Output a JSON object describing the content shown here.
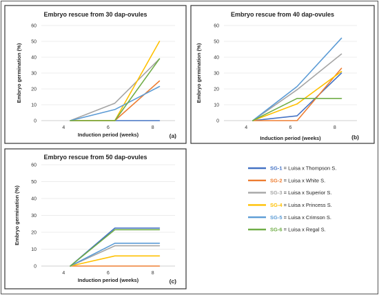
{
  "colors": {
    "SG-1": "#4472c4",
    "SG-2": "#ed7d31",
    "SG-3": "#a5a5a5",
    "SG-4": "#ffc000",
    "SG-5": "#5b9bd5",
    "SG-6": "#70ad47"
  },
  "legend": [
    {
      "key": "SG-1",
      "code": "SG-1",
      "text": " = Luisa x Thompson S."
    },
    {
      "key": "SG-2",
      "code": "SG-2",
      "text": " = Luisa x White S."
    },
    {
      "key": "SG-3",
      "code": "SG-3",
      "text": " = Luisa x Superior S."
    },
    {
      "key": "SG-4",
      "code": "SG-4",
      "text": " = Luisa x Princess S."
    },
    {
      "key": "SG-5",
      "code": "SG-5",
      "text": " = Luisa x Crimson S."
    },
    {
      "key": "SG-6",
      "code": "SG-6",
      "text": " = Luisa x Regal S."
    }
  ],
  "chart_data": [
    {
      "type": "line",
      "panel": "(a)",
      "title": "Embryo rescue from 30 dap-ovules",
      "xlabel": "Induction period (weeks)",
      "ylabel": "Embryo germination (%)",
      "x": [
        4,
        6,
        8
      ],
      "xlim": [
        3,
        9
      ],
      "ylim": [
        0,
        60
      ],
      "yticks": [
        0,
        10,
        20,
        30,
        40,
        50,
        60
      ],
      "grid": true,
      "series": [
        {
          "key": "SG-1",
          "points": [
            [
              4.3,
              0
            ],
            [
              6.3,
              0
            ],
            [
              8.3,
              0
            ]
          ]
        },
        {
          "key": "SG-2",
          "points": [
            [
              4.3,
              0
            ],
            [
              6.3,
              0
            ],
            [
              8.3,
              25
            ]
          ]
        },
        {
          "key": "SG-3",
          "points": [
            [
              4.3,
              0
            ],
            [
              6.3,
              11
            ],
            [
              8.3,
              39
            ]
          ]
        },
        {
          "key": "SG-4",
          "points": [
            [
              4.3,
              0
            ],
            [
              6.3,
              0
            ],
            [
              8.3,
              50
            ]
          ]
        },
        {
          "key": "SG-5",
          "points": [
            [
              4.3,
              0
            ],
            [
              6.3,
              7
            ],
            [
              8.3,
              21.5
            ]
          ]
        },
        {
          "key": "SG-6",
          "points": [
            [
              4.3,
              0
            ],
            [
              6.3,
              0
            ],
            [
              8.3,
              39
            ]
          ]
        }
      ]
    },
    {
      "type": "line",
      "panel": "(b)",
      "title": "Embryo rescue from 40 dap-ovules",
      "xlabel": "Induction period (weeks)",
      "ylabel": "Embryo germination (%)",
      "x": [
        4,
        6,
        8
      ],
      "xlim": [
        3,
        9
      ],
      "ylim": [
        0,
        60
      ],
      "yticks": [
        0,
        10,
        20,
        30,
        40,
        50,
        60
      ],
      "grid": true,
      "series": [
        {
          "key": "SG-1",
          "points": [
            [
              4.3,
              0
            ],
            [
              6.3,
              3
            ],
            [
              8.3,
              30
            ]
          ]
        },
        {
          "key": "SG-2",
          "points": [
            [
              4.3,
              0
            ],
            [
              6.3,
              0
            ],
            [
              8.3,
              33
            ]
          ]
        },
        {
          "key": "SG-3",
          "points": [
            [
              4.3,
              0
            ],
            [
              6.3,
              19.5
            ],
            [
              8.3,
              42
            ]
          ]
        },
        {
          "key": "SG-4",
          "points": [
            [
              4.3,
              0
            ],
            [
              6.3,
              10.5
            ],
            [
              8.3,
              31
            ]
          ]
        },
        {
          "key": "SG-5",
          "points": [
            [
              4.3,
              0
            ],
            [
              6.3,
              21.5
            ],
            [
              8.3,
              52
            ]
          ]
        },
        {
          "key": "SG-6",
          "points": [
            [
              4.3,
              0
            ],
            [
              6.3,
              14
            ],
            [
              8.3,
              14
            ]
          ]
        }
      ]
    },
    {
      "type": "line",
      "panel": "(c)",
      "title": "Embryo rescue from 50 dap-ovules",
      "xlabel": "Induction period (weeks)",
      "ylabel": "Embryo germination (%)",
      "x": [
        4,
        6,
        8
      ],
      "xlim": [
        3,
        9
      ],
      "ylim": [
        0,
        60
      ],
      "yticks": [
        0,
        10,
        20,
        30,
        40,
        50,
        60
      ],
      "grid": true,
      "series": [
        {
          "key": "SG-1",
          "points": [
            [
              4.3,
              0
            ],
            [
              6.3,
              22.5
            ],
            [
              8.3,
              22.5
            ]
          ]
        },
        {
          "key": "SG-2",
          "points": [
            [
              4.3,
              0
            ],
            [
              6.3,
              0
            ],
            [
              8.3,
              0
            ]
          ]
        },
        {
          "key": "SG-3",
          "points": [
            [
              4.3,
              0
            ],
            [
              6.3,
              12
            ],
            [
              8.3,
              12
            ]
          ]
        },
        {
          "key": "SG-4",
          "points": [
            [
              4.3,
              0
            ],
            [
              6.3,
              6
            ],
            [
              8.3,
              6
            ]
          ]
        },
        {
          "key": "SG-5",
          "points": [
            [
              4.3,
              0
            ],
            [
              6.3,
              13.5
            ],
            [
              8.3,
              13.5
            ]
          ]
        },
        {
          "key": "SG-6",
          "points": [
            [
              4.3,
              0
            ],
            [
              6.3,
              21.5
            ],
            [
              8.3,
              21.5
            ]
          ]
        }
      ]
    }
  ]
}
